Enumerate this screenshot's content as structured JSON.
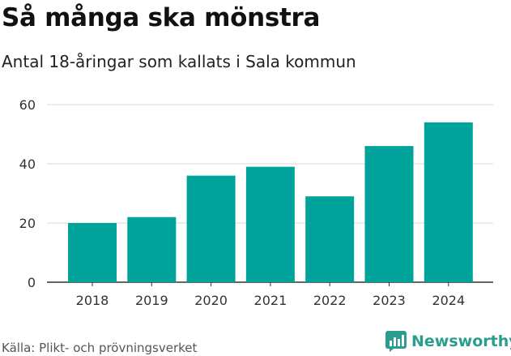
{
  "header": {
    "title": "Så många ska mönstra",
    "subtitle": "Antal 18-åringar som kallats i Sala kommun"
  },
  "footer": {
    "source": "Källa: Plikt- och prövningsverket",
    "brand": "Newsworthy"
  },
  "colors": {
    "bar": "#00a39a",
    "grid": "#d9d9d9",
    "axis": "#333333",
    "brand": "#2a9d8f"
  },
  "chart_data": {
    "type": "bar",
    "title": "Så många ska mönstra",
    "subtitle": "Antal 18-åringar som kallats i Sala kommun",
    "xlabel": "",
    "ylabel": "",
    "categories": [
      "2018",
      "2019",
      "2020",
      "2021",
      "2022",
      "2023",
      "2024"
    ],
    "values": [
      20,
      22,
      36,
      39,
      29,
      46,
      54
    ],
    "ylim": [
      0,
      60
    ],
    "yticks": [
      0,
      20,
      40,
      60
    ],
    "grid": true,
    "legend": "none"
  }
}
